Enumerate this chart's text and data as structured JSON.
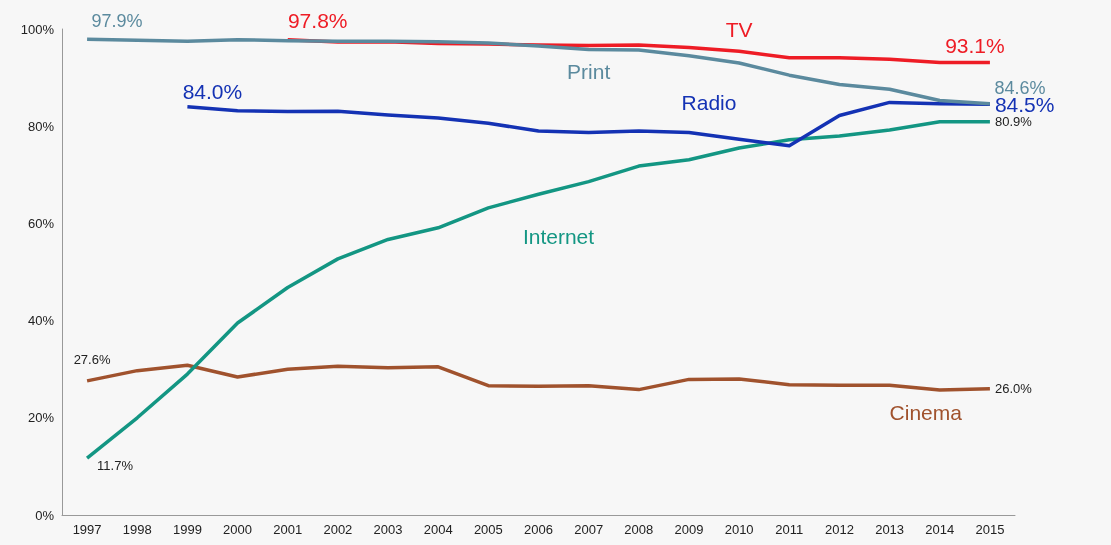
{
  "chart_data": {
    "type": "line",
    "categories": [
      "1997",
      "1998",
      "1999",
      "2000",
      "2001",
      "2002",
      "2003",
      "2004",
      "2005",
      "2006",
      "2007",
      "2008",
      "2009",
      "2010",
      "2011",
      "2012",
      "2013",
      "2014",
      "2015"
    ],
    "ylim": [
      0,
      100
    ],
    "yticks": [
      {
        "value": 0,
        "label": "0%"
      },
      {
        "value": 20,
        "label": "20%"
      },
      {
        "value": 40,
        "label": "40%"
      },
      {
        "value": 60,
        "label": "60%"
      },
      {
        "value": 80,
        "label": "80%"
      },
      {
        "value": 100,
        "label": "100%"
      }
    ],
    "grid": false,
    "legend": false,
    "marker": "none",
    "line_style": "solid",
    "series": [
      {
        "name": "Print",
        "color": "#5b8a9e",
        "values": [
          97.9,
          97.7,
          97.5,
          97.8,
          97.6,
          97.5,
          97.5,
          97.4,
          97.1,
          96.5,
          95.8,
          95.7,
          94.5,
          93.0,
          90.5,
          88.6,
          87.6,
          85.3,
          84.6
        ],
        "value_labels": [
          "97.9%",
          null,
          null,
          null,
          null,
          null,
          null,
          null,
          null,
          null,
          null,
          null,
          null,
          null,
          null,
          null,
          null,
          null,
          "84.6%"
        ]
      },
      {
        "name": "TV",
        "color": "#ee1c25",
        "values": [
          null,
          null,
          null,
          null,
          97.8,
          97.3,
          97.4,
          97.0,
          96.9,
          96.7,
          96.6,
          96.7,
          96.2,
          95.4,
          94.1,
          94.1,
          93.8,
          93.1,
          93.1
        ],
        "value_labels": [
          null,
          null,
          null,
          null,
          "97.8%",
          null,
          null,
          null,
          null,
          null,
          null,
          null,
          null,
          null,
          null,
          null,
          null,
          null,
          "93.1%"
        ]
      },
      {
        "name": "Radio",
        "color": "#1432b4",
        "values": [
          null,
          null,
          84.0,
          83.2,
          83.0,
          83.1,
          82.3,
          81.7,
          80.6,
          79.0,
          78.7,
          79.0,
          78.7,
          77.3,
          76.0,
          82.2,
          84.9,
          84.6,
          84.5
        ],
        "value_labels": [
          null,
          null,
          "84.0%",
          null,
          null,
          null,
          null,
          null,
          null,
          null,
          null,
          null,
          null,
          null,
          null,
          null,
          null,
          null,
          "84.5%"
        ]
      },
      {
        "name": "Internet",
        "color": "#139683",
        "values": [
          11.7,
          20.0,
          29.0,
          39.5,
          46.8,
          52.7,
          56.7,
          59.1,
          63.2,
          66.0,
          68.6,
          71.8,
          73.1,
          75.5,
          77.2,
          78.0,
          79.2,
          80.9,
          80.9
        ],
        "value_labels": [
          "11.7%",
          null,
          null,
          null,
          null,
          null,
          null,
          null,
          null,
          null,
          null,
          null,
          null,
          null,
          null,
          null,
          null,
          null,
          "80.9%"
        ]
      },
      {
        "name": "Cinema",
        "color": "#a0522d",
        "values": [
          27.6,
          29.7,
          30.8,
          28.4,
          30.0,
          30.6,
          30.3,
          30.5,
          26.6,
          26.5,
          26.6,
          25.8,
          27.9,
          28.0,
          26.8,
          26.7,
          26.7,
          25.7,
          26.0
        ],
        "value_labels": [
          "27.6%",
          null,
          null,
          null,
          null,
          null,
          null,
          null,
          null,
          null,
          null,
          null,
          null,
          null,
          null,
          null,
          null,
          null,
          "26.0%"
        ]
      }
    ]
  }
}
